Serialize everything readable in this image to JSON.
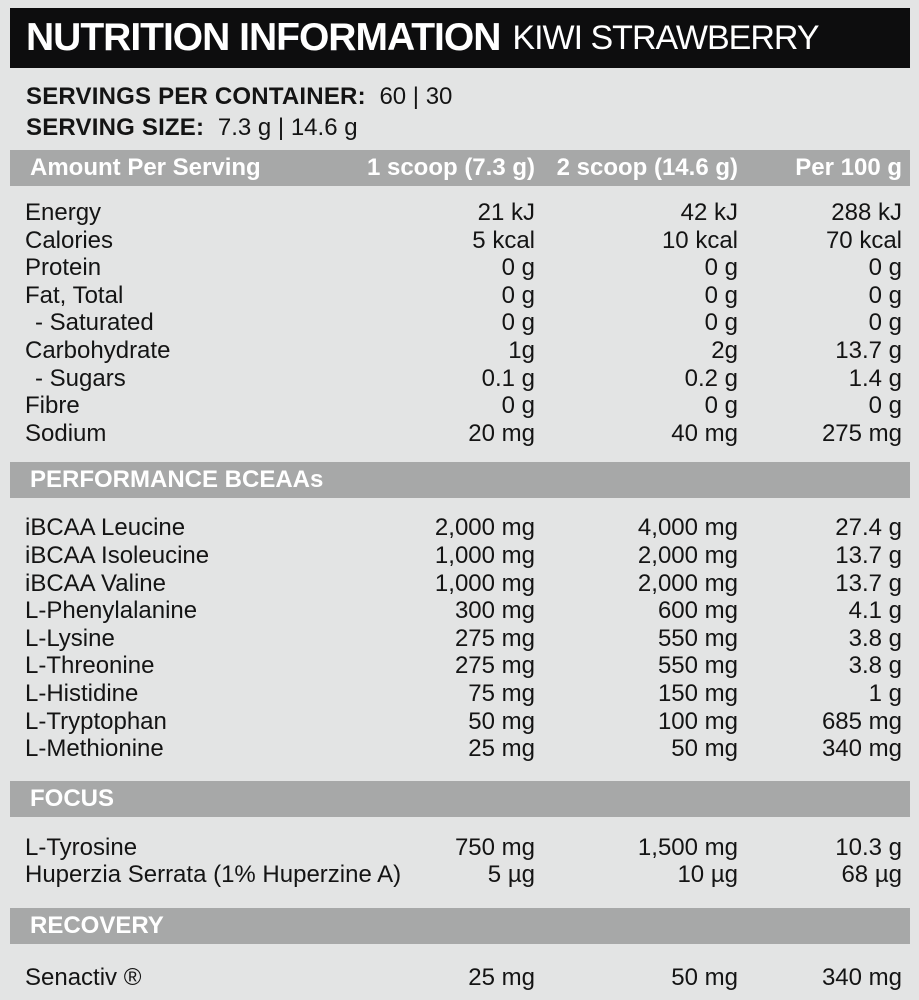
{
  "header": {
    "title": "NUTRITION INFORMATION",
    "flavor": "KIWI STRAWBERRY"
  },
  "servings": {
    "per_container_label": "SERVINGS PER CONTAINER:",
    "per_container_value": "60 | 30",
    "size_label": "SERVING SIZE:",
    "size_value": "7.3 g | 14.6 g"
  },
  "columns": {
    "name": "Amount Per Serving",
    "col1": "1 scoop (7.3 g)",
    "col2": "2 scoop (14.6 g)",
    "col3": "Per 100 g"
  },
  "sections": [
    {
      "id": "main",
      "title": null,
      "rows": [
        {
          "name": "Energy",
          "indent": false,
          "v1": "21 kJ",
          "v2": "42 kJ",
          "v3": "288 kJ"
        },
        {
          "name": "Calories",
          "indent": false,
          "v1": "5 kcal",
          "v2": "10 kcal",
          "v3": "70 kcal"
        },
        {
          "name": "Protein",
          "indent": false,
          "v1": "0 g",
          "v2": "0 g",
          "v3": "0 g"
        },
        {
          "name": "Fat, Total",
          "indent": false,
          "v1": "0 g",
          "v2": "0 g",
          "v3": "0 g"
        },
        {
          "name": "- Saturated",
          "indent": true,
          "v1": "0 g",
          "v2": "0 g",
          "v3": "0 g"
        },
        {
          "name": "Carbohydrate",
          "indent": false,
          "v1": "1g",
          "v2": "2g",
          "v3": "13.7 g"
        },
        {
          "name": "- Sugars",
          "indent": true,
          "v1": "0.1 g",
          "v2": "0.2 g",
          "v3": "1.4 g"
        },
        {
          "name": "Fibre",
          "indent": false,
          "v1": "0 g",
          "v2": "0 g",
          "v3": "0 g"
        },
        {
          "name": "Sodium",
          "indent": false,
          "v1": "20 mg",
          "v2": "40 mg",
          "v3": "275 mg"
        }
      ]
    },
    {
      "id": "performance-bceaas",
      "title": "PERFORMANCE BCEAAs",
      "rows": [
        {
          "name": "iBCAA Leucine",
          "indent": false,
          "v1": "2,000 mg",
          "v2": "4,000 mg",
          "v3": "27.4 g"
        },
        {
          "name": "iBCAA Isoleucine",
          "indent": false,
          "v1": "1,000 mg",
          "v2": "2,000 mg",
          "v3": "13.7 g"
        },
        {
          "name": "iBCAA Valine",
          "indent": false,
          "v1": "1,000 mg",
          "v2": "2,000 mg",
          "v3": "13.7 g"
        },
        {
          "name": "L-Phenylalanine",
          "indent": false,
          "v1": "300 mg",
          "v2": "600 mg",
          "v3": "4.1 g"
        },
        {
          "name": "L-Lysine",
          "indent": false,
          "v1": "275 mg",
          "v2": "550 mg",
          "v3": "3.8 g"
        },
        {
          "name": "L-Threonine",
          "indent": false,
          "v1": "275 mg",
          "v2": "550 mg",
          "v3": "3.8 g"
        },
        {
          "name": "L-Histidine",
          "indent": false,
          "v1": "75 mg",
          "v2": "150 mg",
          "v3": "1 g"
        },
        {
          "name": "L-Tryptophan",
          "indent": false,
          "v1": "50 mg",
          "v2": "100 mg",
          "v3": "685 mg"
        },
        {
          "name": "L-Methionine",
          "indent": false,
          "v1": "25 mg",
          "v2": "50 mg",
          "v3": "340 mg"
        }
      ]
    },
    {
      "id": "focus",
      "title": "FOCUS",
      "rows": [
        {
          "name": "L-Tyrosine",
          "indent": false,
          "v1": "750 mg",
          "v2": "1,500 mg",
          "v3": "10.3 g"
        },
        {
          "name": "Huperzia Serrata (1% Huperzine A)",
          "indent": false,
          "v1": "5 µg",
          "v2": "10 µg",
          "v3": "68 µg"
        }
      ]
    },
    {
      "id": "recovery",
      "title": "RECOVERY",
      "rows": [
        {
          "name": "Senactiv ®",
          "indent": false,
          "v1": "25 mg",
          "v2": "50 mg",
          "v3": "340 mg"
        }
      ]
    }
  ],
  "colors": {
    "background": "#e3e4e4",
    "title_bar": "#0d0d0e",
    "section_bar": "#a7a8a8",
    "text": "#141414",
    "bar_text": "#ffffff"
  }
}
